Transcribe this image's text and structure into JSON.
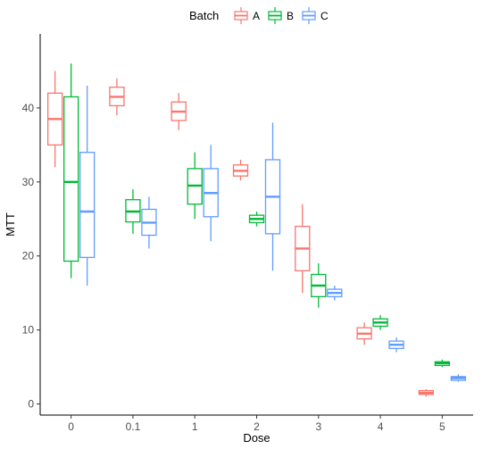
{
  "chart_data": {
    "type": "boxplot",
    "xlabel": "Dose",
    "ylabel": "MTT",
    "categories": [
      "0",
      "0.1",
      "1",
      "2",
      "3",
      "4",
      "5"
    ],
    "y_ticks": [
      0,
      10,
      20,
      30,
      40
    ],
    "ylim": [
      -1.5,
      50
    ],
    "grid": false,
    "legend": {
      "title": "Batch",
      "position": "top",
      "entries": [
        "A",
        "B",
        "C"
      ]
    },
    "series": [
      {
        "name": "A",
        "color": "#F8766D",
        "boxes": [
          {
            "min": 32,
            "q1": 35,
            "median": 38.5,
            "q3": 42,
            "max": 45
          },
          {
            "min": 39,
            "q1": 40.3,
            "median": 41.5,
            "q3": 42.8,
            "max": 44
          },
          {
            "min": 37,
            "q1": 38.3,
            "median": 39.5,
            "q3": 40.8,
            "max": 42
          },
          {
            "min": 30.2,
            "q1": 30.8,
            "median": 31.5,
            "q3": 32.3,
            "max": 33
          },
          {
            "min": 15,
            "q1": 18,
            "median": 21,
            "q3": 24,
            "max": 27
          },
          {
            "min": 8,
            "q1": 8.8,
            "median": 9.5,
            "q3": 10.3,
            "max": 11
          },
          {
            "min": 1,
            "q1": 1.3,
            "median": 1.5,
            "q3": 1.8,
            "max": 2
          }
        ]
      },
      {
        "name": "B",
        "color": "#00BA38",
        "boxes": [
          {
            "min": 17,
            "q1": 19.3,
            "median": 30,
            "q3": 41.5,
            "max": 46
          },
          {
            "min": 23,
            "q1": 24.6,
            "median": 26,
            "q3": 27.6,
            "max": 29
          },
          {
            "min": 25,
            "q1": 27,
            "median": 29.5,
            "q3": 31.8,
            "max": 34
          },
          {
            "min": 24,
            "q1": 24.5,
            "median": 25,
            "q3": 25.5,
            "max": 26
          },
          {
            "min": 13,
            "q1": 14.5,
            "median": 16,
            "q3": 17.5,
            "max": 19
          },
          {
            "min": 10,
            "q1": 10.5,
            "median": 11,
            "q3": 11.5,
            "max": 12
          },
          {
            "min": 5,
            "q1": 5.2,
            "median": 5.5,
            "q3": 5.7,
            "max": 6
          }
        ]
      },
      {
        "name": "C",
        "color": "#619CFF",
        "boxes": [
          {
            "min": 16,
            "q1": 19.8,
            "median": 26,
            "q3": 34,
            "max": 43
          },
          {
            "min": 21,
            "q1": 22.8,
            "median": 24.5,
            "q3": 26.3,
            "max": 28
          },
          {
            "min": 22,
            "q1": 25.3,
            "median": 28.5,
            "q3": 31.8,
            "max": 35
          },
          {
            "min": 18,
            "q1": 23,
            "median": 28,
            "q3": 33,
            "max": 38
          },
          {
            "min": 14,
            "q1": 14.5,
            "median": 15,
            "q3": 15.5,
            "max": 16
          },
          {
            "min": 7,
            "q1": 7.5,
            "median": 8,
            "q3": 8.5,
            "max": 9
          },
          {
            "min": 3,
            "q1": 3.2,
            "median": 3.5,
            "q3": 3.7,
            "max": 4
          }
        ]
      }
    ]
  }
}
